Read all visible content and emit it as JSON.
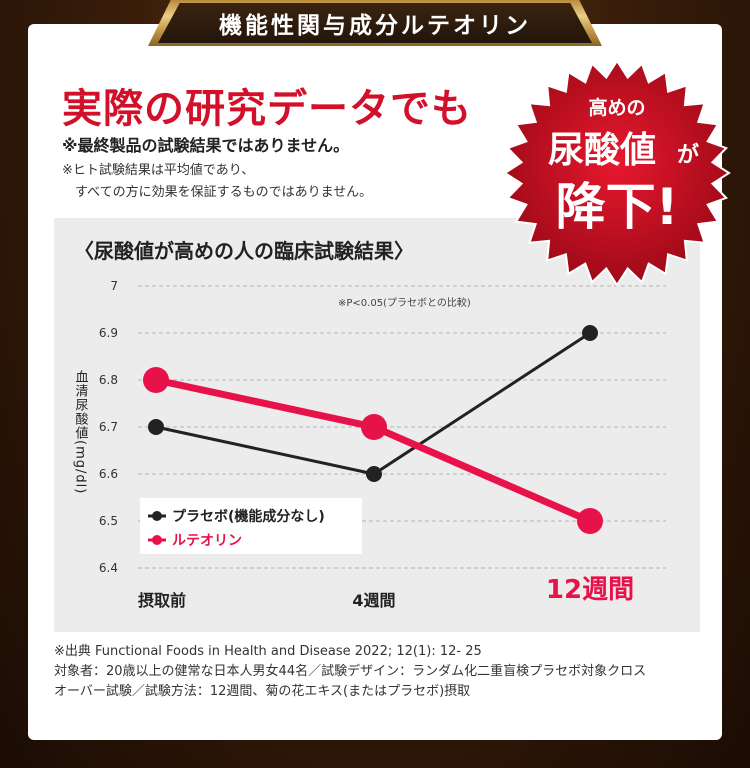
{
  "banner": {
    "title": "機能性関与成分ルテオリン"
  },
  "headline": "実際の研究データでも",
  "notes": {
    "line1": "※最終製品の試験結果ではありません。",
    "line2a": "※ヒト試験結果は平均値であり、",
    "line2b": "すべての方に効果を保証するものではありません。"
  },
  "badge": {
    "top": "高めの",
    "main": "尿酸値",
    "particle": "が",
    "bottom": "降下!",
    "color": "#d3102a"
  },
  "chart_data": {
    "type": "line",
    "title": "〈尿酸値が高めの人の臨床試験結果〉",
    "ylabel": "血清尿酸値(mg/dl)",
    "annotation": "※P<0.05(プラセボとの比較)",
    "categories": [
      "摂取前",
      "4週間",
      "12週間"
    ],
    "ylim": [
      6.4,
      7.0
    ],
    "yticks": [
      "6.4",
      "6.5",
      "6.6",
      "6.7",
      "6.8",
      "6.9",
      "7"
    ],
    "legend_position": "bottom-left",
    "grid": true,
    "series": [
      {
        "name": "プラセボ(機能成分なし)",
        "values": [
          6.7,
          6.6,
          6.9
        ],
        "color": "#222222"
      },
      {
        "name": "ルテオリン",
        "values": [
          6.8,
          6.7,
          6.5
        ],
        "color": "#e8124a"
      }
    ]
  },
  "footnote": {
    "line1": "※出典 Functional Foods in Health and Disease 2022; 12(1): 12- 25",
    "line2": "対象者：20歳以上の健常な日本人男女44名／試験デザイン：ランダム化二重盲検プラセボ対象クロス",
    "line3": "オーバー試験／試験方法：12週間、菊の花エキス(またはプラセボ)摂取"
  }
}
